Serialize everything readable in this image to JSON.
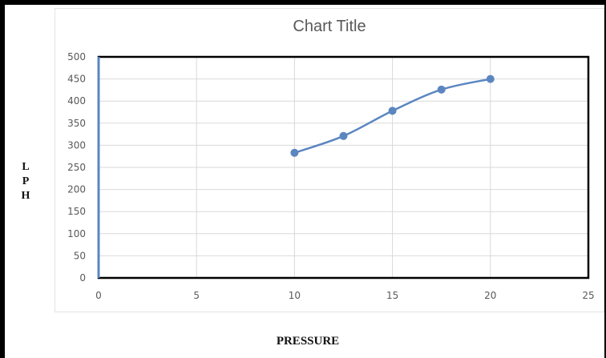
{
  "chart_data": {
    "type": "scatter",
    "title": "Chart Title",
    "xlabel": "PRESSURE",
    "ylabel": "LPH",
    "xlim": [
      0,
      25
    ],
    "ylim": [
      0,
      500
    ],
    "xticks": [
      0,
      5,
      10,
      15,
      20,
      25
    ],
    "yticks": [
      0,
      50,
      100,
      150,
      200,
      250,
      300,
      350,
      400,
      450,
      500
    ],
    "grid": true,
    "smooth": true,
    "series": [
      {
        "x": [
          10,
          12.5,
          15,
          17.5,
          20
        ],
        "y": [
          283,
          321,
          378,
          426,
          450
        ],
        "color": "#5b86c0"
      }
    ]
  }
}
